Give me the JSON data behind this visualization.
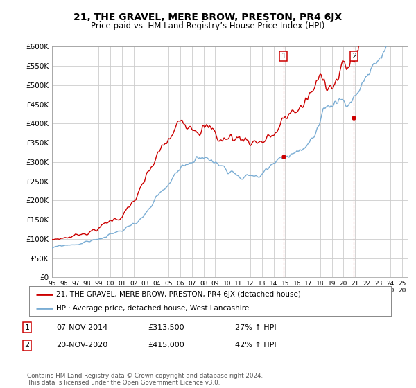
{
  "title": "21, THE GRAVEL, MERE BROW, PRESTON, PR4 6JX",
  "subtitle": "Price paid vs. HM Land Registry’s House Price Index (HPI)",
  "ylabel_ticks": [
    "£0",
    "£50K",
    "£100K",
    "£150K",
    "£200K",
    "£250K",
    "£300K",
    "£350K",
    "£400K",
    "£450K",
    "£500K",
    "£550K",
    "£600K"
  ],
  "ylim": [
    0,
    600000
  ],
  "ytick_values": [
    0,
    50000,
    100000,
    150000,
    200000,
    250000,
    300000,
    350000,
    400000,
    450000,
    500000,
    550000,
    600000
  ],
  "xlim_start": 1995.0,
  "xlim_end": 2025.5,
  "red_color": "#cc0000",
  "blue_color": "#7aadd4",
  "sale1_year": 2014.85,
  "sale1_price": 313500,
  "sale2_year": 2020.89,
  "sale2_price": 415000,
  "legend_line1": "21, THE GRAVEL, MERE BROW, PRESTON, PR4 6JX (detached house)",
  "legend_line2": "HPI: Average price, detached house, West Lancashire",
  "note1_num": "1",
  "note1_date": "07-NOV-2014",
  "note1_price": "£313,500",
  "note1_hpi": "27% ↑ HPI",
  "note2_num": "2",
  "note2_date": "20-NOV-2020",
  "note2_price": "£415,000",
  "note2_hpi": "42% ↑ HPI",
  "footer": "Contains HM Land Registry data © Crown copyright and database right 2024.\nThis data is licensed under the Open Government Licence v3.0.",
  "background_color": "#ffffff",
  "grid_color": "#cccccc"
}
